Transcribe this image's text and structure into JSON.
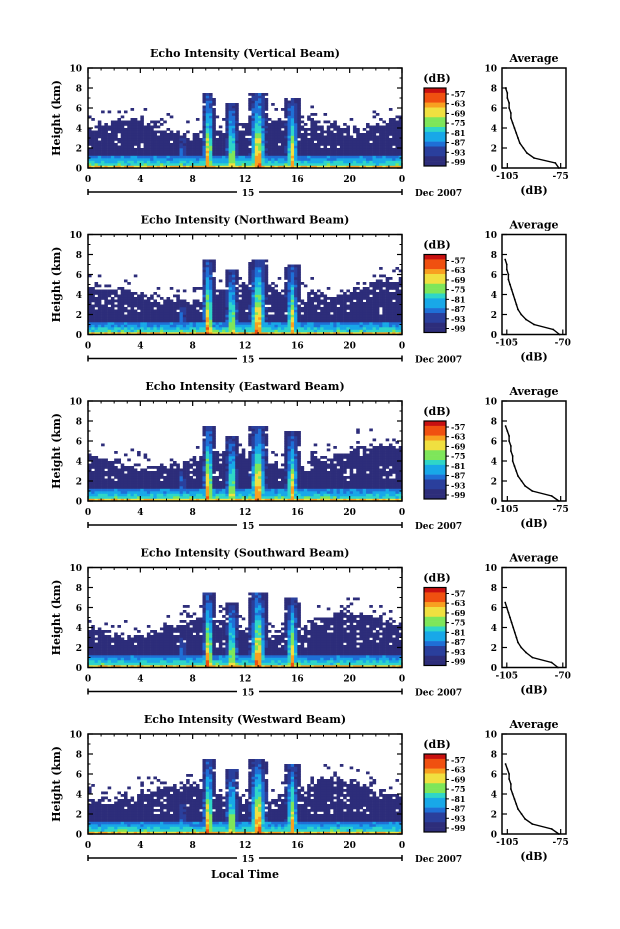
{
  "figure": {
    "x_axis_label": "Local Time",
    "date_label": "15",
    "month_label": "Dec 2007"
  },
  "colors": {
    "colormap": [
      "#2d2d7a",
      "#2a3f9c",
      "#1f6fd6",
      "#18a8e8",
      "#2fd6c8",
      "#7ee65a",
      "#f0e040",
      "#f8a020",
      "#f05010",
      "#c81010"
    ],
    "background": "#ffffff"
  },
  "chart_data": [
    {
      "type": "heatmap",
      "title": "Echo Intensity (Vertical Beam)",
      "ylabel": "Height (km)",
      "xlim": [
        0,
        24
      ],
      "ylim": [
        0,
        10
      ],
      "xticks": [
        "0",
        "4",
        "8",
        "12",
        "16",
        "20",
        "0"
      ],
      "yticks": [
        "0",
        "2",
        "4",
        "6",
        "8",
        "10"
      ],
      "colorbar_label": "(dB)",
      "colorbar_ticks": [
        "-57",
        "-63",
        "-69",
        "-75",
        "-81",
        "-87",
        "-93",
        "-99"
      ],
      "avg_title": "Average",
      "avg_xlabel": "(dB)",
      "avg_xticks": [
        "-105",
        "-75"
      ],
      "avg_xlim": [
        -108,
        -72
      ],
      "avg_heights": [
        0,
        0.5,
        1,
        1.5,
        2,
        2.5,
        3,
        3.5,
        4,
        4.5,
        5,
        5.5,
        6,
        6.5,
        7,
        7.5,
        8
      ],
      "avg_values": [
        -76,
        -78,
        -90,
        -94,
        -96,
        -98,
        -99,
        -100,
        -101,
        -102,
        -103,
        -103,
        -104,
        -104,
        -105,
        -105,
        -106
      ]
    },
    {
      "type": "heatmap",
      "title": "Echo Intensity (Northward Beam)",
      "ylabel": "Height (km)",
      "xlim": [
        0,
        24
      ],
      "ylim": [
        0,
        10
      ],
      "xticks": [
        "0",
        "4",
        "8",
        "12",
        "16",
        "20",
        "0"
      ],
      "yticks": [
        "0",
        "2",
        "4",
        "6",
        "8",
        "10"
      ],
      "colorbar_label": "(dB)",
      "colorbar_ticks": [
        "-57",
        "-63",
        "-69",
        "-75",
        "-81",
        "-87",
        "-93",
        "-99"
      ],
      "avg_title": "Average",
      "avg_xlabel": "(dB)",
      "avg_xticks": [
        "-105",
        "-70"
      ],
      "avg_xlim": [
        -108,
        -68
      ],
      "avg_heights": [
        0,
        0.5,
        1,
        1.5,
        2,
        2.5,
        3,
        3.5,
        4,
        4.5,
        5,
        5.5,
        6,
        6.5,
        7,
        7.5
      ],
      "avg_values": [
        -72,
        -76,
        -88,
        -93,
        -96,
        -98,
        -99,
        -100,
        -101,
        -102,
        -103,
        -104,
        -104,
        -105,
        -105,
        -106
      ]
    },
    {
      "type": "heatmap",
      "title": "Echo Intensity (Eastward Beam)",
      "ylabel": "Height (km)",
      "xlim": [
        0,
        24
      ],
      "ylim": [
        0,
        10
      ],
      "xticks": [
        "0",
        "4",
        "8",
        "12",
        "16",
        "20",
        "0"
      ],
      "yticks": [
        "0",
        "2",
        "4",
        "6",
        "8",
        "10"
      ],
      "colorbar_label": "(dB)",
      "colorbar_ticks": [
        "-57",
        "-63",
        "-69",
        "-75",
        "-81",
        "-87",
        "-93",
        "-99"
      ],
      "avg_title": "Average",
      "avg_xlabel": "(dB)",
      "avg_xticks": [
        "-105",
        "-75"
      ],
      "avg_xlim": [
        -108,
        -72
      ],
      "avg_heights": [
        0,
        0.5,
        1,
        1.5,
        2,
        2.5,
        3,
        3.5,
        4,
        4.5,
        5,
        5.5,
        6,
        6.5,
        7,
        7.5
      ],
      "avg_values": [
        -76,
        -80,
        -91,
        -95,
        -97,
        -99,
        -100,
        -101,
        -102,
        -102,
        -103,
        -103,
        -104,
        -104,
        -105,
        -106
      ]
    },
    {
      "type": "heatmap",
      "title": "Echo Intensity (Southward Beam)",
      "ylabel": "Height (km)",
      "xlim": [
        0,
        24
      ],
      "ylim": [
        0,
        10
      ],
      "xticks": [
        "0",
        "4",
        "8",
        "12",
        "16",
        "20",
        "0"
      ],
      "yticks": [
        "0",
        "2",
        "4",
        "6",
        "8",
        "10"
      ],
      "colorbar_label": "(dB)",
      "colorbar_ticks": [
        "-57",
        "-63",
        "-69",
        "-75",
        "-81",
        "-87",
        "-93",
        "-99"
      ],
      "avg_title": "Average",
      "avg_xlabel": "(dB)",
      "avg_xticks": [
        "-105",
        "-70"
      ],
      "avg_xlim": [
        -108,
        -68
      ],
      "avg_heights": [
        0,
        0.5,
        1,
        1.5,
        2,
        2.5,
        3,
        3.5,
        4,
        4.5,
        5,
        5.5,
        6,
        6.5
      ],
      "avg_values": [
        -73,
        -77,
        -89,
        -93,
        -96,
        -98,
        -99,
        -100,
        -101,
        -102,
        -103,
        -104,
        -105,
        -106
      ]
    },
    {
      "type": "heatmap",
      "title": "Echo Intensity (Westward Beam)",
      "ylabel": "Height (km)",
      "xlim": [
        0,
        24
      ],
      "ylim": [
        0,
        10
      ],
      "xticks": [
        "0",
        "4",
        "8",
        "12",
        "16",
        "20",
        "0"
      ],
      "yticks": [
        "0",
        "2",
        "4",
        "6",
        "8",
        "10"
      ],
      "colorbar_label": "(dB)",
      "colorbar_ticks": [
        "-57",
        "-63",
        "-69",
        "-75",
        "-81",
        "-87",
        "-93",
        "-99"
      ],
      "avg_title": "Average",
      "avg_xlabel": "(dB)",
      "avg_xticks": [
        "-105",
        "-75"
      ],
      "avg_xlim": [
        -108,
        -72
      ],
      "avg_heights": [
        0,
        0.5,
        1,
        1.5,
        2,
        2.5,
        3,
        3.5,
        4,
        4.5,
        5,
        5.5,
        6,
        6.5,
        7
      ],
      "avg_values": [
        -76,
        -80,
        -91,
        -95,
        -97,
        -99,
        -100,
        -101,
        -102,
        -103,
        -103,
        -104,
        -104,
        -105,
        -106
      ]
    }
  ]
}
